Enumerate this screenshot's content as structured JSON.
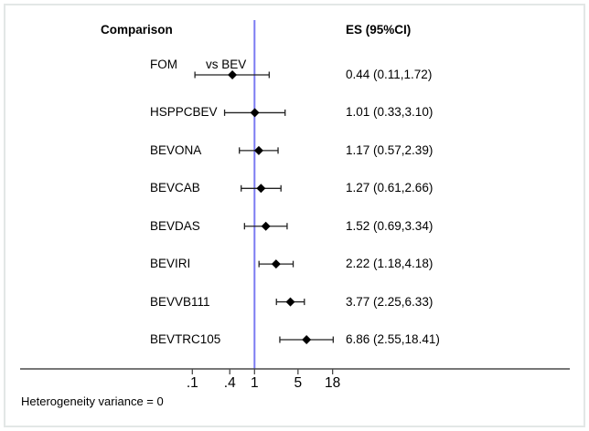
{
  "header": {
    "comparison": "Comparison",
    "es_ci": "ES (95%CI)"
  },
  "footer": {
    "note": "Heterogeneity variance = 0"
  },
  "colors": {
    "reference_line": "#7b7bf2",
    "ci_line": "#222222",
    "axis_line": "#4a4a4a",
    "marker": "#000000",
    "text": "#000000",
    "frame_border": "#e3e7e6"
  },
  "chart_data": {
    "type": "forest",
    "x_scale": "log10",
    "reference_value": 1,
    "x_ticks": [
      0.1,
      0.4,
      1,
      5,
      18
    ],
    "x_tick_labels": [
      ".1",
      ".4",
      "1",
      "5",
      "18"
    ],
    "column_headers": [
      "Comparison",
      "ES (95%CI)"
    ],
    "rows": [
      {
        "label": "FOM",
        "annotation": "vs BEV",
        "es": 0.44,
        "lo": 0.11,
        "hi": 1.72,
        "es_text": "0.44 (0.11,1.72)"
      },
      {
        "label": "HSPPCBEV",
        "es": 1.01,
        "lo": 0.33,
        "hi": 3.1,
        "es_text": "1.01 (0.33,3.10)"
      },
      {
        "label": "BEVONA",
        "es": 1.17,
        "lo": 0.57,
        "hi": 2.39,
        "es_text": "1.17 (0.57,2.39)"
      },
      {
        "label": "BEVCAB",
        "es": 1.27,
        "lo": 0.61,
        "hi": 2.66,
        "es_text": "1.27 (0.61,2.66)"
      },
      {
        "label": "BEVDAS",
        "es": 1.52,
        "lo": 0.69,
        "hi": 3.34,
        "es_text": "1.52 (0.69,3.34)"
      },
      {
        "label": "BEVIRI",
        "es": 2.22,
        "lo": 1.18,
        "hi": 4.18,
        "es_text": "2.22 (1.18,4.18)"
      },
      {
        "label": "BEVVB111",
        "es": 3.77,
        "lo": 2.25,
        "hi": 6.33,
        "es_text": "3.77 (2.25,6.33)"
      },
      {
        "label": "BEVTRC105",
        "es": 6.86,
        "lo": 2.55,
        "hi": 18.41,
        "es_text": "6.86 (2.55,18.41)"
      }
    ],
    "note": "Heterogeneity variance = 0"
  }
}
